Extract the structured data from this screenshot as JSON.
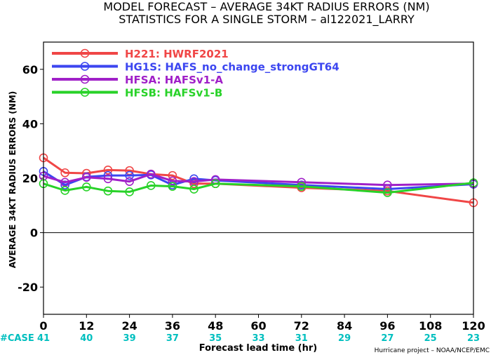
{
  "chart_data": {
    "type": "line",
    "title": "MODEL FORECAST – AVERAGE 34KT RADIUS ERRORS (NM)",
    "subtitle": "STATISTICS FOR A SINGLE STORM – al122021_LARRY",
    "xlabel": "Forecast lead time (hr)",
    "ylabel": "AVERAGE 34KT RADIUS ERRORS (NM)",
    "xlim": [
      0,
      120
    ],
    "ylim": [
      -30,
      70
    ],
    "x_ticks": [
      0,
      12,
      24,
      36,
      48,
      60,
      72,
      84,
      96,
      108,
      120
    ],
    "y_ticks": [
      -20,
      0,
      20,
      40,
      60
    ],
    "zero_line": true,
    "grid": false,
    "legend_position": "top-left",
    "case_label": "#CASE",
    "cases": [
      {
        "x": 0,
        "n": 41
      },
      {
        "x": 12,
        "n": 40
      },
      {
        "x": 24,
        "n": 39
      },
      {
        "x": 36,
        "n": 37
      },
      {
        "x": 48,
        "n": 35
      },
      {
        "x": 60,
        "n": 33
      },
      {
        "x": 72,
        "n": 31
      },
      {
        "x": 84,
        "n": 29
      },
      {
        "x": 96,
        "n": 27
      },
      {
        "x": 108,
        "n": 25
      },
      {
        "x": 120,
        "n": 23
      }
    ],
    "credit": "Hurricane project – NOAA/NCEP/EMC",
    "series": [
      {
        "name": "H221",
        "description": "HWRF2021",
        "color": "#f04646",
        "x": [
          0,
          6,
          12,
          18,
          24,
          30,
          36,
          42,
          48,
          72,
          96,
          120
        ],
        "values": [
          27.5,
          22.0,
          21.8,
          23.0,
          22.8,
          21.5,
          21.0,
          18.0,
          18.0,
          16.5,
          15.3,
          11.0
        ]
      },
      {
        "name": "HG1S",
        "description": "HAFS_no_change_strongGT64",
        "color": "#3c46f0",
        "x": [
          0,
          6,
          12,
          18,
          24,
          30,
          36,
          42,
          48,
          72,
          96,
          120
        ],
        "values": [
          22.5,
          17.5,
          20.5,
          21.0,
          21.0,
          21.2,
          17.5,
          19.8,
          19.2,
          17.5,
          16.0,
          17.8
        ]
      },
      {
        "name": "HFSA",
        "description": "HAFSv1-A",
        "color": "#a020c8",
        "x": [
          0,
          6,
          12,
          18,
          24,
          30,
          36,
          42,
          48,
          72,
          96,
          120
        ],
        "values": [
          20.8,
          18.5,
          20.3,
          19.8,
          18.8,
          21.5,
          19.0,
          18.8,
          19.5,
          18.5,
          17.5,
          18.0
        ]
      },
      {
        "name": "HFSB",
        "description": "HAFSv1-B",
        "color": "#28d228",
        "x": [
          0,
          6,
          12,
          18,
          24,
          30,
          36,
          42,
          48,
          72,
          96,
          120
        ],
        "values": [
          18.0,
          15.5,
          16.8,
          15.3,
          15.0,
          17.3,
          17.0,
          16.0,
          18.0,
          17.0,
          14.7,
          18.3
        ]
      }
    ]
  }
}
